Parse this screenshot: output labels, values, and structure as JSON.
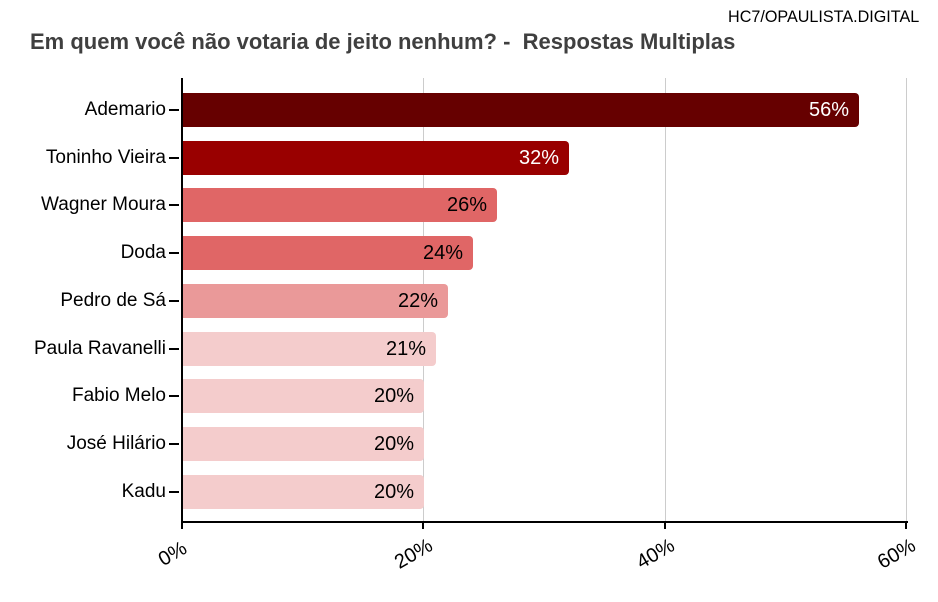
{
  "watermark": "HC7/OPAULISTA.DIGITAL",
  "title": "Em quem você não votaria de jeito nenhum? -  Respostas Multiplas",
  "colors": {
    "title_text": "#3f3f3f",
    "axis": "#000000",
    "gridline": "#cccccc",
    "background": "#ffffff"
  },
  "chart_data": {
    "type": "bar",
    "orientation": "horizontal",
    "title": "Em quem você não votaria de jeito nenhum? -  Respostas Multiplas",
    "categories": [
      "Ademario",
      "Toninho Vieira",
      "Wagner Moura",
      "Doda",
      "Pedro de Sá",
      "Paula Ravanelli",
      "Fabio Melo",
      "José Hilário",
      "Kadu"
    ],
    "values": [
      56,
      32,
      26,
      24,
      22,
      21,
      20,
      20,
      20
    ],
    "value_labels": [
      "56%",
      "32%",
      "26%",
      "24%",
      "22%",
      "21%",
      "20%",
      "20%",
      "20%"
    ],
    "bar_colors": [
      "#660000",
      "#990000",
      "#e06666",
      "#e06666",
      "#ea9999",
      "#f4cccc",
      "#f4cccc",
      "#f4cccc",
      "#f4cccc"
    ],
    "value_label_colors": [
      "#ffffff",
      "#ffffff",
      "#000000",
      "#000000",
      "#000000",
      "#000000",
      "#000000",
      "#000000",
      "#000000"
    ],
    "xlim": [
      0,
      60
    ],
    "x_ticks": [
      {
        "value": 0,
        "label": "0%"
      },
      {
        "value": 20,
        "label": "20%"
      },
      {
        "value": 40,
        "label": "40%"
      },
      {
        "value": 60,
        "label": "60%"
      }
    ],
    "grid": true,
    "legend": "none",
    "xlabel": "",
    "ylabel": ""
  }
}
